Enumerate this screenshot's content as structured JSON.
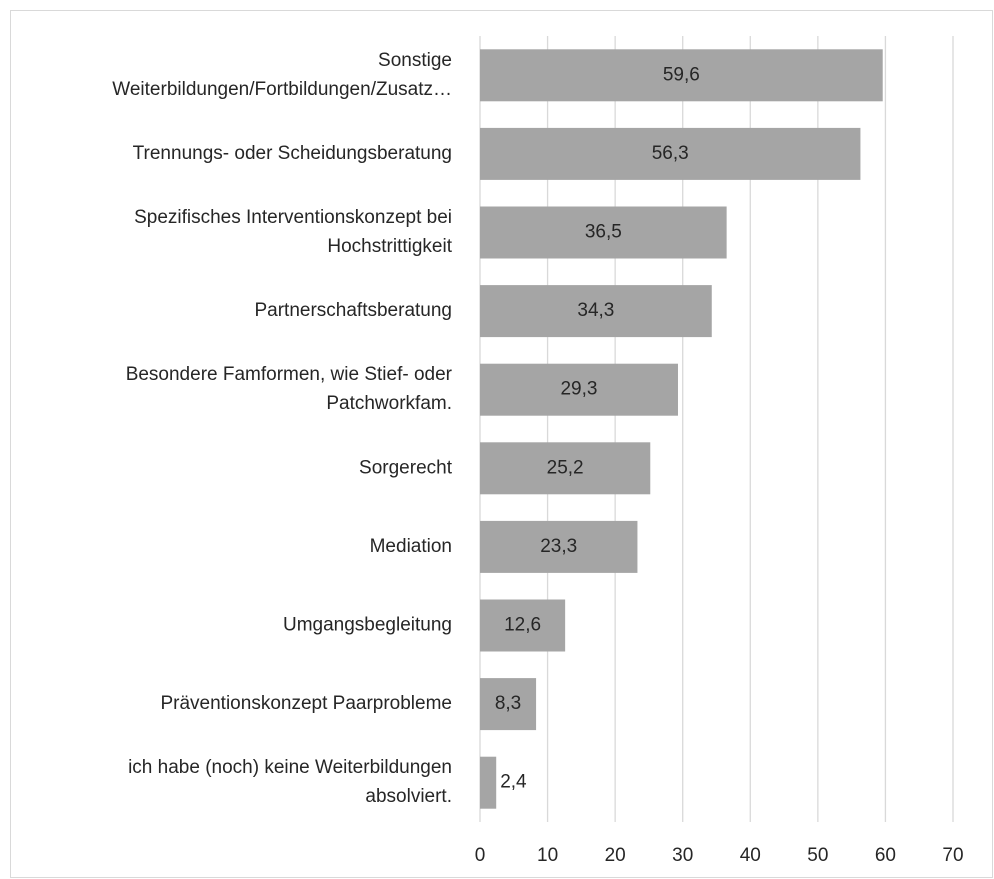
{
  "chart_data": {
    "type": "bar",
    "orientation": "horizontal",
    "categories": [
      [
        "Sonstige",
        "Weiterbildungen/Fortbildungen/Zusatz…"
      ],
      [
        "Trennungs- oder Scheidungsberatung"
      ],
      [
        "Spezifisches Interventionskonzept bei",
        "Hochstrittigkeit"
      ],
      [
        "Partnerschaftsberatung"
      ],
      [
        "Besondere Famformen, wie Stief- oder",
        "Patchworkfam."
      ],
      [
        "Sorgerecht"
      ],
      [
        "Mediation"
      ],
      [
        "Umgangsbegleitung"
      ],
      [
        "Präventionskonzept Paarprobleme"
      ],
      [
        "ich habe (noch) keine Weiterbildungen",
        "absolviert."
      ]
    ],
    "values": [
      59.6,
      56.3,
      36.5,
      34.3,
      29.3,
      25.2,
      23.3,
      12.6,
      8.3,
      2.4
    ],
    "value_labels": [
      "59,6",
      "56,3",
      "36,5",
      "34,3",
      "29,3",
      "25,2",
      "23,3",
      "12,6",
      "8,3",
      "2,4"
    ],
    "color": "#a5a5a5",
    "xlim": [
      0,
      70
    ],
    "xticks": [
      0,
      10,
      20,
      30,
      40,
      50,
      60,
      70
    ],
    "grid": true
  }
}
